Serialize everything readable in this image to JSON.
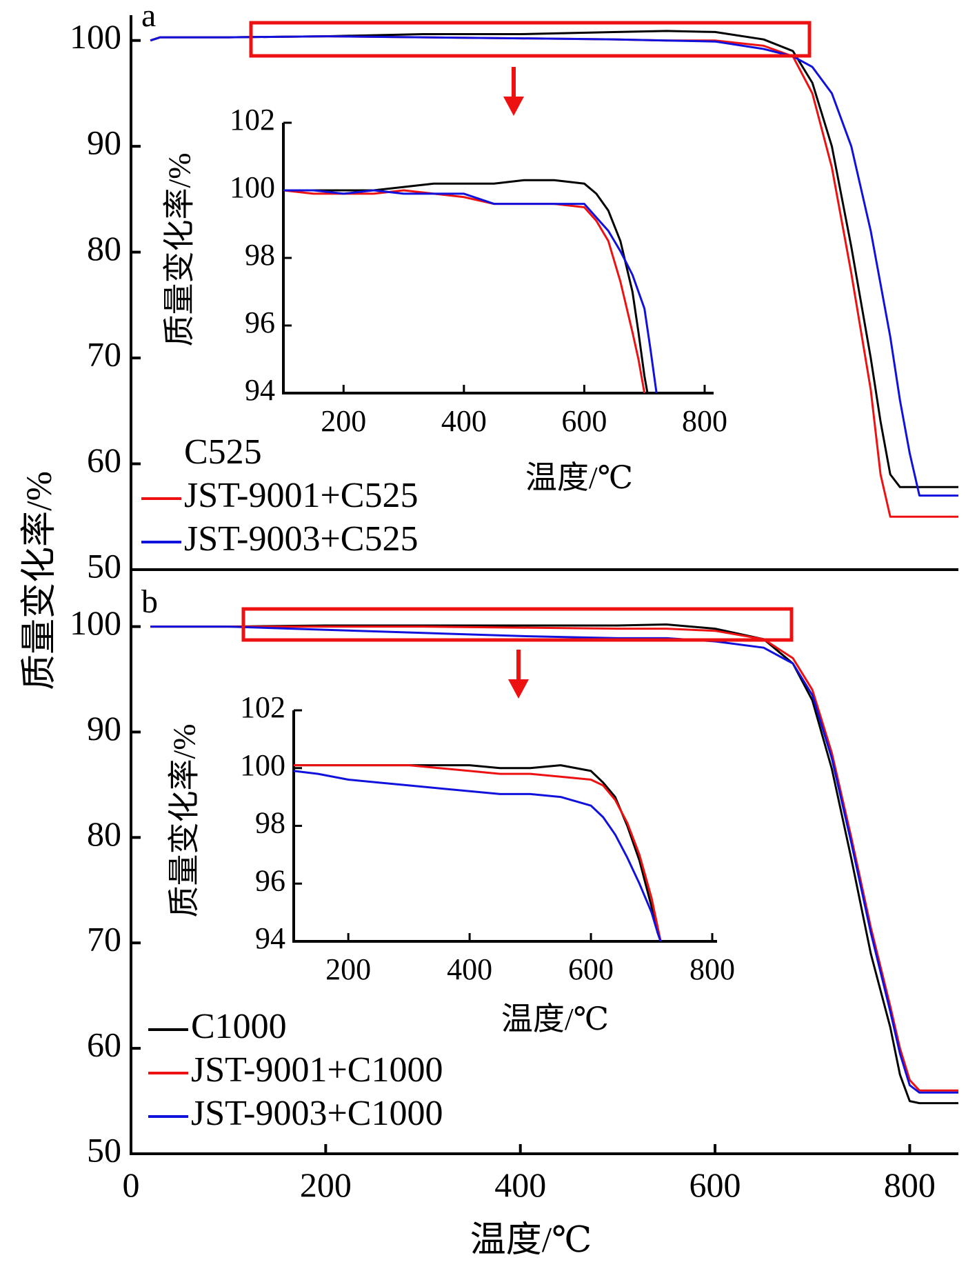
{
  "x_axis_title": "温度/℃",
  "y_axis_title": "质量变化率/%",
  "chart_data": [
    {
      "id": "panel-a",
      "type": "line",
      "panel_label": "a",
      "xlabel": "",
      "ylabel": "质量变化率/%",
      "xlim": [
        0,
        850
      ],
      "ylim": [
        50,
        102
      ],
      "y_ticks": [
        50,
        60,
        70,
        80,
        90,
        100
      ],
      "grid": false,
      "legend_placement": "bottom-left",
      "series": [
        {
          "name": "C525",
          "color": "#000000",
          "x": [
            20,
            30,
            100,
            200,
            300,
            400,
            500,
            550,
            600,
            650,
            680,
            700,
            720,
            740,
            760,
            770,
            780,
            790,
            800,
            850
          ],
          "y": [
            100.0,
            100.3,
            100.3,
            100.4,
            100.6,
            100.6,
            100.8,
            100.9,
            100.8,
            100.1,
            99.0,
            96.0,
            90.0,
            80.5,
            70.0,
            64.0,
            59.0,
            57.8,
            57.8,
            57.8
          ]
        },
        {
          "name": "JST-9001+C525",
          "color": "#ee1111",
          "x": [
            20,
            30,
            100,
            200,
            300,
            400,
            500,
            550,
            600,
            650,
            680,
            700,
            720,
            740,
            760,
            770,
            780,
            790,
            800,
            850
          ],
          "y": [
            100.0,
            100.3,
            100.3,
            100.4,
            100.3,
            100.2,
            100.1,
            100.0,
            100.0,
            99.5,
            98.5,
            95.0,
            88.0,
            78.0,
            67.0,
            59.0,
            55.0,
            55.0,
            55.0,
            55.0
          ]
        },
        {
          "name": "JST-9003+C525",
          "color": "#1111dd",
          "x": [
            20,
            30,
            100,
            200,
            300,
            400,
            500,
            550,
            600,
            650,
            680,
            700,
            720,
            740,
            760,
            780,
            790,
            800,
            810,
            850
          ],
          "y": [
            100.0,
            100.3,
            100.3,
            100.4,
            100.3,
            100.2,
            100.1,
            100.0,
            99.9,
            99.2,
            98.5,
            97.5,
            95.0,
            90.0,
            82.0,
            72.0,
            66.0,
            61.0,
            57.0,
            57.0
          ]
        }
      ],
      "inset": {
        "xlabel": "温度/℃",
        "ylabel": "质量变化率/%",
        "xlim": [
          100,
          800
        ],
        "ylim": [
          94,
          102
        ],
        "x_ticks": [
          200,
          400,
          600,
          800
        ],
        "y_ticks": [
          94,
          96,
          98,
          100,
          102
        ],
        "series": [
          {
            "name": "C525",
            "color": "#000000",
            "x": [
              100,
              150,
              200,
              250,
              300,
              350,
              400,
              450,
              500,
              550,
              600,
              620,
              640,
              660,
              680,
              690,
              700,
              705
            ],
            "y": [
              100.0,
              100.0,
              100.0,
              100.0,
              100.1,
              100.2,
              100.2,
              100.2,
              100.3,
              100.3,
              100.2,
              99.9,
              99.4,
              98.5,
              97.0,
              95.8,
              94.5,
              94.0
            ]
          },
          {
            "name": "JST-9001+C525",
            "color": "#ee1111",
            "x": [
              100,
              150,
              200,
              250,
              300,
              350,
              400,
              450,
              500,
              550,
              600,
              620,
              640,
              660,
              680,
              690,
              700
            ],
            "y": [
              100.0,
              99.9,
              99.9,
              99.9,
              100.0,
              99.9,
              99.8,
              99.6,
              99.6,
              99.6,
              99.5,
              99.1,
              98.5,
              97.3,
              95.8,
              95.0,
              94.0
            ]
          },
          {
            "name": "JST-9003+C525",
            "color": "#1111dd",
            "x": [
              100,
              150,
              200,
              250,
              300,
              350,
              400,
              450,
              500,
              550,
              600,
              620,
              640,
              660,
              680,
              700,
              710,
              720
            ],
            "y": [
              100.0,
              100.0,
              99.9,
              100.0,
              99.9,
              99.9,
              99.9,
              99.6,
              99.6,
              99.6,
              99.6,
              99.2,
              98.8,
              98.2,
              97.5,
              96.5,
              95.3,
              94.0
            ]
          }
        ]
      }
    },
    {
      "id": "panel-b",
      "type": "line",
      "panel_label": "b",
      "xlabel": "温度/℃",
      "ylabel": "质量变化率/%",
      "xlim": [
        0,
        850
      ],
      "ylim": [
        50,
        102
      ],
      "x_ticks": [
        0,
        200,
        400,
        600,
        800
      ],
      "y_ticks": [
        50,
        60,
        70,
        80,
        90,
        100
      ],
      "grid": false,
      "legend_placement": "bottom-left",
      "series": [
        {
          "name": "C1000",
          "color": "#000000",
          "x": [
            20,
            100,
            200,
            300,
            400,
            500,
            550,
            600,
            650,
            680,
            700,
            720,
            740,
            760,
            780,
            790,
            800,
            810,
            850
          ],
          "y": [
            100.0,
            100.0,
            100.1,
            100.1,
            100.1,
            100.1,
            100.2,
            99.8,
            98.8,
            96.5,
            93.0,
            86.5,
            78.0,
            69.0,
            62.0,
            57.5,
            55.0,
            54.8,
            54.8
          ]
        },
        {
          "name": "JST-9001+C1000",
          "color": "#ee1111",
          "x": [
            20,
            100,
            200,
            300,
            400,
            500,
            550,
            600,
            650,
            680,
            700,
            720,
            740,
            760,
            780,
            790,
            800,
            810,
            850
          ],
          "y": [
            100.0,
            100.0,
            100.0,
            100.0,
            99.9,
            99.8,
            99.8,
            99.6,
            98.8,
            97.0,
            94.0,
            88.0,
            80.0,
            71.5,
            64.0,
            60.0,
            57.0,
            56.0,
            56.0
          ]
        },
        {
          "name": "JST-9003+C1000",
          "color": "#1111dd",
          "x": [
            20,
            100,
            200,
            300,
            400,
            500,
            550,
            600,
            650,
            680,
            700,
            720,
            740,
            760,
            780,
            790,
            800,
            810,
            850
          ],
          "y": [
            100.0,
            100.0,
            99.7,
            99.4,
            99.1,
            98.9,
            98.9,
            98.6,
            98.0,
            96.5,
            93.5,
            87.5,
            79.5,
            71.0,
            63.5,
            59.5,
            56.5,
            55.8,
            55.8
          ]
        }
      ],
      "inset": {
        "xlabel": "温度/℃",
        "ylabel": "质量变化率/%",
        "xlim": [
          110,
          800
        ],
        "ylim": [
          94,
          102
        ],
        "x_ticks": [
          200,
          400,
          600,
          800
        ],
        "y_ticks": [
          94,
          96,
          98,
          100,
          102
        ],
        "series": [
          {
            "name": "C1000",
            "color": "#000000",
            "x": [
              110,
              150,
              200,
              250,
              300,
              350,
              400,
              450,
              500,
              550,
              600,
              620,
              640,
              660,
              680,
              700,
              710,
              715
            ],
            "y": [
              100.1,
              100.1,
              100.1,
              100.1,
              100.1,
              100.1,
              100.1,
              100.0,
              100.0,
              100.1,
              99.9,
              99.5,
              99.0,
              98.0,
              96.8,
              95.2,
              94.3,
              94.0
            ]
          },
          {
            "name": "JST-9001+C1000",
            "color": "#ee1111",
            "x": [
              110,
              150,
              200,
              250,
              300,
              350,
              400,
              450,
              500,
              550,
              600,
              620,
              640,
              660,
              680,
              700,
              710,
              715
            ],
            "y": [
              100.1,
              100.1,
              100.1,
              100.1,
              100.1,
              100.0,
              99.9,
              99.8,
              99.8,
              99.7,
              99.6,
              99.4,
              98.9,
              98.1,
              97.0,
              95.5,
              94.5,
              94.0
            ]
          },
          {
            "name": "JST-9003+C1000",
            "color": "#1111dd",
            "x": [
              110,
              150,
              200,
              250,
              300,
              350,
              400,
              450,
              500,
              550,
              600,
              620,
              640,
              660,
              680,
              700,
              710,
              715
            ],
            "y": [
              99.9,
              99.8,
              99.6,
              99.5,
              99.4,
              99.3,
              99.2,
              99.1,
              99.1,
              99.0,
              98.7,
              98.3,
              97.7,
              96.9,
              96.0,
              95.0,
              94.3,
              94.0
            ]
          }
        ]
      }
    }
  ]
}
